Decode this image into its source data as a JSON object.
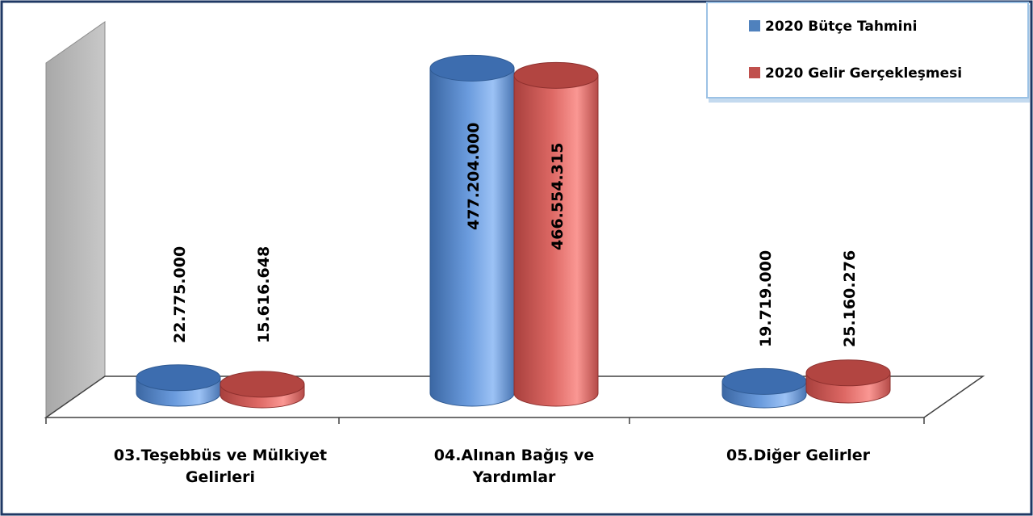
{
  "chart_data": {
    "type": "bar",
    "title": "",
    "xlabel": "",
    "ylabel": "",
    "categories": [
      "03.Teşebbüs ve Mülkiyet Gelirleri",
      "04.Alınan Bağış ve Yardımlar",
      "05.Diğer Gelirler"
    ],
    "category_lines": [
      [
        "03.Teşebbüs ve Mülkiyet",
        "Gelirleri"
      ],
      [
        "04.Alınan Bağış ve",
        "Yardımlar"
      ],
      [
        "05.Diğer Gelirler"
      ]
    ],
    "series": [
      {
        "name": "2020 Bütçe Tahmini",
        "values": [
          22775000,
          477204000,
          19719000
        ],
        "labels": [
          "22.775.000",
          "477.204.000",
          "19.719.000"
        ],
        "color": "#4F81BD"
      },
      {
        "name": "2020 Gelir Gerçekleşmesi",
        "values": [
          15616648,
          466554315,
          25160276
        ],
        "labels": [
          "15.616.648",
          "466.554.315",
          "25.160.276"
        ],
        "color": "#C0504D"
      }
    ],
    "ylim": [
      0,
      480000000
    ],
    "grid": false,
    "legend_position": "top-right",
    "style": "3d-cylinder",
    "frame_color": "#1F3864"
  }
}
